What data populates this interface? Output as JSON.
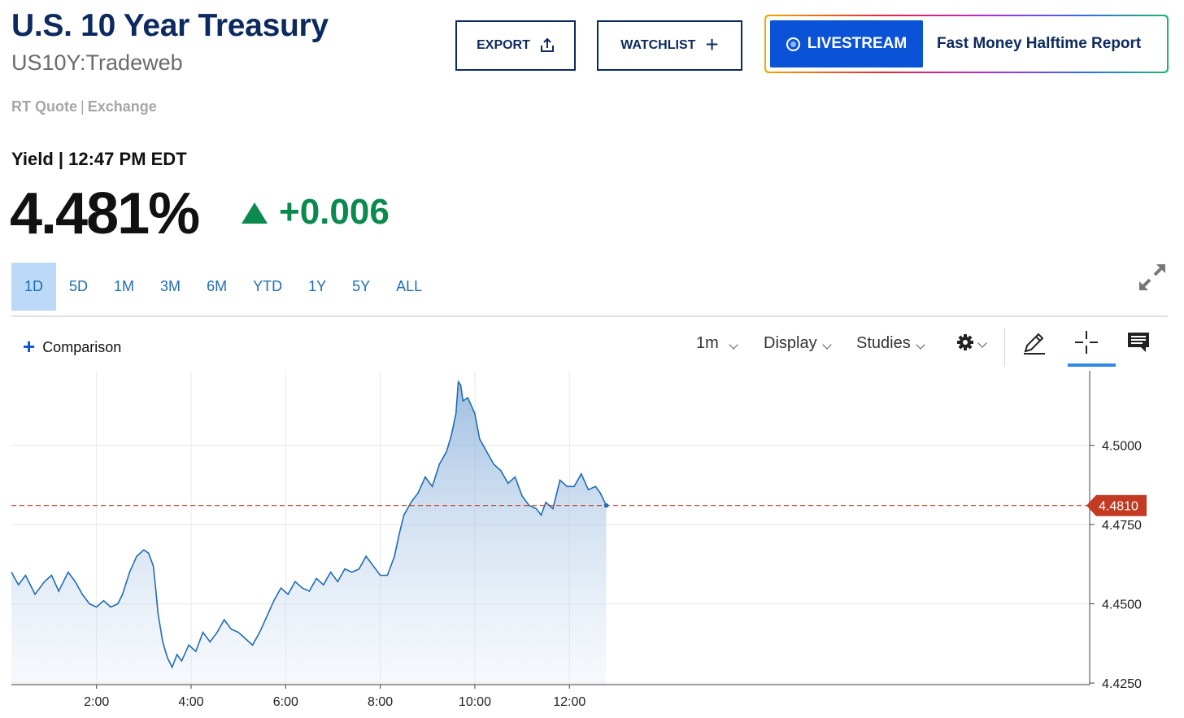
{
  "header": {
    "title": "U.S. 10 Year Treasury",
    "symbol": "US10Y:Tradeweb",
    "quote_type": "RT Quote",
    "quote_exchange": "Exchange"
  },
  "actions": {
    "export_label": "EXPORT",
    "watchlist_label": "WATCHLIST",
    "livestream_label": "LIVESTREAM",
    "livestream_show": "Fast Money Halftime Report"
  },
  "quote": {
    "label": "Yield | 12:47 PM EDT",
    "value": "4.481%",
    "change": "+0.006",
    "direction": "up",
    "up_color": "#0a8a4e"
  },
  "ranges": {
    "items": [
      "1D",
      "5D",
      "1M",
      "3M",
      "6M",
      "YTD",
      "1Y",
      "5Y",
      "ALL"
    ],
    "active": "1D"
  },
  "toolbar": {
    "comparison_label": "Comparison",
    "interval_label": "1m",
    "display_label": "Display",
    "studies_label": "Studies",
    "icons": [
      "gear-icon",
      "pencil-icon",
      "crosshair-icon",
      "comment-icon",
      "expand-icon"
    ]
  },
  "chart_data": {
    "type": "area",
    "x_unit": "hour of day (ET)",
    "xlim": [
      0.2,
      23.0
    ],
    "ylim": [
      4.4245,
      4.5235
    ],
    "x_ticks": [
      2,
      4,
      6,
      8,
      10,
      12
    ],
    "x_tick_labels": [
      "2:00",
      "4:00",
      "6:00",
      "8:00",
      "10:00",
      "12:00"
    ],
    "y_ticks": [
      4.425,
      4.45,
      4.475,
      4.5
    ],
    "y_tick_labels": [
      "4.4250",
      "4.4500",
      "4.4750",
      "4.5000"
    ],
    "grid": true,
    "current_value": 4.481,
    "current_label": "4.4810",
    "current_color": "#c23a22",
    "line_color": "#1f6db3",
    "series": [
      {
        "x": [
          0.2,
          0.35,
          0.5,
          0.7,
          0.9,
          1.05,
          1.2,
          1.4,
          1.55,
          1.7,
          1.85,
          2.0,
          2.15,
          2.3,
          2.45,
          2.55,
          2.7,
          2.85,
          3.0,
          3.1,
          3.2,
          3.25,
          3.3,
          3.4,
          3.5,
          3.6,
          3.7,
          3.8,
          3.95,
          4.1,
          4.25,
          4.4,
          4.55,
          4.7,
          4.85,
          5.0,
          5.15,
          5.3,
          5.45,
          5.6,
          5.75,
          5.9,
          6.05,
          6.2,
          6.35,
          6.5,
          6.65,
          6.8,
          6.95,
          7.1,
          7.25,
          7.4,
          7.55,
          7.7,
          7.85,
          8.0,
          8.15,
          8.3,
          8.4,
          8.5,
          8.65,
          8.8,
          8.95,
          9.1,
          9.25,
          9.4,
          9.5,
          9.6,
          9.65,
          9.7,
          9.75,
          9.85,
          10.0,
          10.1,
          10.25,
          10.4,
          10.55,
          10.7,
          10.85,
          11.0,
          11.15,
          11.3,
          11.4,
          11.5,
          11.65,
          11.8,
          11.95,
          12.1,
          12.25,
          12.4,
          12.55,
          12.65,
          12.78
        ],
        "y": [
          4.46,
          4.456,
          4.459,
          4.453,
          4.457,
          4.459,
          4.454,
          4.46,
          4.457,
          4.453,
          4.45,
          4.449,
          4.451,
          4.449,
          4.45,
          4.453,
          4.46,
          4.465,
          4.467,
          4.466,
          4.462,
          4.455,
          4.447,
          4.438,
          4.433,
          4.43,
          4.434,
          4.432,
          4.437,
          4.435,
          4.441,
          4.438,
          4.441,
          4.445,
          4.442,
          4.441,
          4.439,
          4.437,
          4.441,
          4.446,
          4.451,
          4.455,
          4.453,
          4.457,
          4.455,
          4.454,
          4.458,
          4.456,
          4.46,
          4.457,
          4.461,
          4.46,
          4.461,
          4.465,
          4.462,
          4.459,
          4.459,
          4.465,
          4.472,
          4.478,
          4.482,
          4.485,
          4.49,
          4.487,
          4.494,
          4.498,
          4.503,
          4.51,
          4.52,
          4.519,
          4.514,
          4.515,
          4.51,
          4.502,
          4.498,
          4.494,
          4.492,
          4.488,
          4.49,
          4.484,
          4.481,
          4.48,
          4.478,
          4.482,
          4.48,
          4.489,
          4.487,
          4.487,
          4.491,
          4.486,
          4.487,
          4.485,
          4.481
        ]
      }
    ]
  }
}
